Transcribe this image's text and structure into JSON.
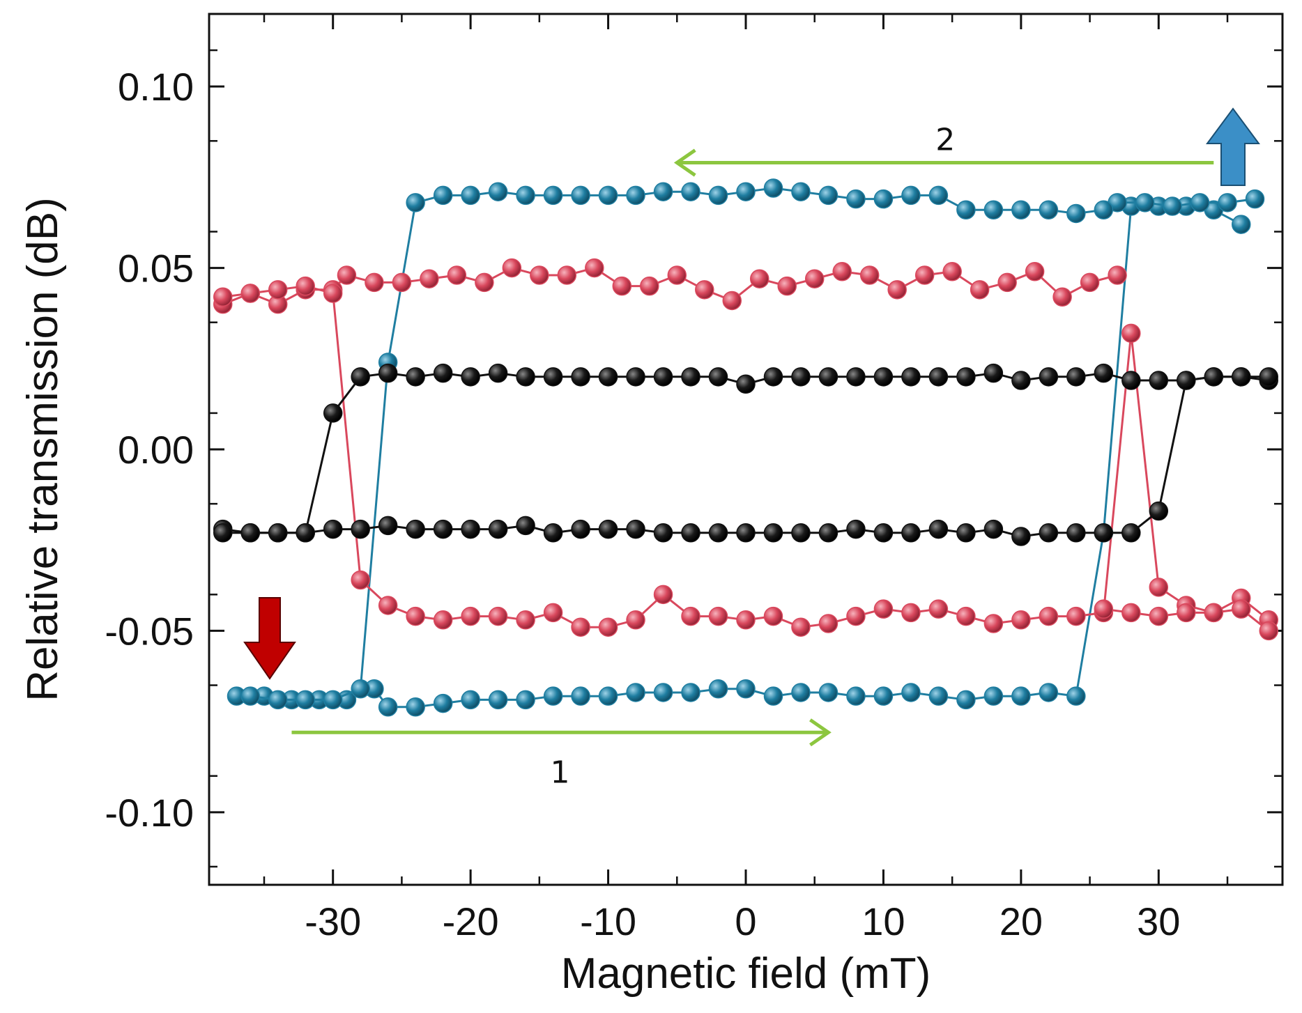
{
  "chart_data": {
    "type": "scatter",
    "title": "",
    "xlabel": "Magnetic field (mT)",
    "ylabel": "Relative transmission (dB)",
    "xlim": [
      -39,
      39
    ],
    "ylim": [
      -0.12,
      0.12
    ],
    "xticks": [
      -30,
      -20,
      -10,
      0,
      10,
      20,
      30
    ],
    "xtick_labels": [
      "-30",
      "-20",
      "-10",
      "0",
      "10",
      "20",
      "30"
    ],
    "yticks": [
      -0.1,
      -0.05,
      0.0,
      0.05,
      0.1
    ],
    "ytick_labels": [
      "-0.10",
      "-0.05",
      "0.00",
      "0.05",
      "0.10"
    ],
    "grid": false,
    "colors": {
      "blue": "#1f7ea1",
      "red": "#d9485d",
      "black": "#111111",
      "green": "#8cc63f",
      "down_arrow": "#c00000",
      "up_arrow": "#3b8fc7"
    },
    "series": [
      {
        "name": "blue-forward",
        "color": "#1f7ea1",
        "x": [
          -37,
          -35,
          -33,
          -31,
          -29,
          -27,
          -26,
          -24,
          -22,
          -20,
          -18,
          -16,
          -14,
          -12,
          -10,
          -8,
          -6,
          -4,
          -2,
          0,
          2,
          4,
          6,
          8,
          10,
          12,
          14,
          16,
          18,
          20,
          22,
          24,
          26,
          28,
          30,
          32,
          34,
          36
        ],
        "y": [
          -0.068,
          -0.068,
          -0.069,
          -0.069,
          -0.069,
          -0.066,
          -0.071,
          -0.071,
          -0.07,
          -0.069,
          -0.069,
          -0.069,
          -0.068,
          -0.068,
          -0.068,
          -0.067,
          -0.067,
          -0.067,
          -0.066,
          -0.066,
          -0.068,
          -0.067,
          -0.067,
          -0.068,
          -0.068,
          -0.067,
          -0.068,
          -0.069,
          -0.068,
          -0.068,
          -0.067,
          -0.068,
          -0.023,
          0.067,
          0.067,
          0.067,
          0.066,
          0.062
        ]
      },
      {
        "name": "blue-reverse",
        "color": "#1f7ea1",
        "x": [
          37,
          35,
          33,
          31,
          29,
          27,
          26,
          24,
          22,
          20,
          18,
          16,
          14,
          12,
          10,
          8,
          6,
          4,
          2,
          0,
          -2,
          -4,
          -6,
          -8,
          -10,
          -12,
          -14,
          -16,
          -18,
          -20,
          -22,
          -24,
          -26,
          -28,
          -30,
          -32,
          -34,
          -36
        ],
        "y": [
          0.069,
          0.068,
          0.068,
          0.067,
          0.068,
          0.068,
          0.066,
          0.065,
          0.066,
          0.066,
          0.066,
          0.066,
          0.07,
          0.07,
          0.069,
          0.069,
          0.07,
          0.071,
          0.072,
          0.071,
          0.07,
          0.071,
          0.071,
          0.07,
          0.07,
          0.07,
          0.07,
          0.07,
          0.071,
          0.07,
          0.07,
          0.068,
          0.024,
          -0.066,
          -0.069,
          -0.069,
          -0.069,
          -0.068
        ]
      },
      {
        "name": "red-upper",
        "color": "#d9485d",
        "x": [
          -38,
          -36,
          -34,
          -32,
          -30,
          -29,
          -27,
          -25,
          -23,
          -21,
          -19,
          -17,
          -15,
          -13,
          -11,
          -9,
          -7,
          -5,
          -3,
          -1,
          1,
          3,
          5,
          7,
          9,
          11,
          13,
          15,
          17,
          19,
          21,
          23,
          25,
          27
        ],
        "y": [
          0.04,
          0.043,
          0.04,
          0.044,
          0.044,
          0.048,
          0.046,
          0.046,
          0.047,
          0.048,
          0.046,
          0.05,
          0.048,
          0.048,
          0.05,
          0.045,
          0.045,
          0.048,
          0.044,
          0.041,
          0.047,
          0.045,
          0.047,
          0.049,
          0.048,
          0.044,
          0.048,
          0.049,
          0.044,
          0.046,
          0.049,
          0.042,
          0.046,
          0.048
        ]
      },
      {
        "name": "red-switch",
        "color": "#d9485d",
        "x": [
          -38,
          -36,
          -34,
          -32,
          -30,
          -28,
          -26,
          -24,
          -22,
          -20,
          -18,
          -16,
          -14,
          -12,
          -10,
          -8,
          -6,
          -4,
          -2,
          0,
          2,
          4,
          6,
          8,
          10,
          12,
          14,
          16,
          18,
          20,
          22,
          24,
          26,
          28,
          30,
          32,
          34,
          36,
          38
        ],
        "y": [
          0.042,
          0.043,
          0.044,
          0.045,
          0.043,
          -0.036,
          -0.043,
          -0.046,
          -0.047,
          -0.046,
          -0.046,
          -0.047,
          -0.045,
          -0.049,
          -0.049,
          -0.047,
          -0.04,
          -0.046,
          -0.046,
          -0.047,
          -0.046,
          -0.049,
          -0.048,
          -0.046,
          -0.044,
          -0.045,
          -0.044,
          -0.046,
          -0.048,
          -0.047,
          -0.046,
          -0.046,
          -0.045,
          0.032,
          -0.038,
          -0.043,
          -0.045,
          -0.041,
          -0.047
        ]
      },
      {
        "name": "red-lower",
        "color": "#d9485d",
        "x": [
          26,
          28,
          30,
          32,
          34,
          36,
          38
        ],
        "y": [
          -0.044,
          -0.045,
          -0.046,
          -0.045,
          -0.045,
          -0.044,
          -0.05
        ]
      },
      {
        "name": "black-lower",
        "color": "#111111",
        "x": [
          -38,
          -36,
          -34,
          -32,
          -30,
          -28,
          -26,
          -24,
          -22,
          -20,
          -18,
          -16,
          -14,
          -12,
          -10,
          -8,
          -6,
          -4,
          -2,
          0,
          2,
          4,
          6,
          8,
          10,
          12,
          14,
          16,
          18,
          20,
          22,
          24,
          26,
          28,
          30,
          32,
          34,
          36,
          38
        ],
        "y": [
          -0.022,
          -0.023,
          -0.023,
          -0.023,
          -0.022,
          -0.022,
          -0.021,
          -0.022,
          -0.022,
          -0.022,
          -0.022,
          -0.021,
          -0.023,
          -0.022,
          -0.022,
          -0.022,
          -0.023,
          -0.023,
          -0.023,
          -0.023,
          -0.023,
          -0.023,
          -0.023,
          -0.022,
          -0.023,
          -0.023,
          -0.022,
          -0.023,
          -0.022,
          -0.024,
          -0.023,
          -0.023,
          -0.023,
          -0.023,
          -0.017,
          0.019,
          0.02,
          0.02,
          0.019
        ]
      },
      {
        "name": "black-upper",
        "color": "#111111",
        "x": [
          38,
          36,
          34,
          32,
          30,
          28,
          26,
          24,
          22,
          20,
          18,
          16,
          14,
          12,
          10,
          8,
          6,
          4,
          2,
          0,
          -2,
          -4,
          -6,
          -8,
          -10,
          -12,
          -14,
          -16,
          -18,
          -20,
          -22,
          -24,
          -26,
          -28,
          -30,
          -32,
          -34,
          -36,
          -38
        ],
        "y": [
          0.02,
          0.02,
          0.02,
          0.019,
          0.019,
          0.019,
          0.021,
          0.02,
          0.02,
          0.019,
          0.021,
          0.02,
          0.02,
          0.02,
          0.02,
          0.02,
          0.02,
          0.02,
          0.02,
          0.018,
          0.02,
          0.02,
          0.02,
          0.02,
          0.02,
          0.02,
          0.02,
          0.02,
          0.021,
          0.02,
          0.021,
          0.02,
          0.021,
          0.02,
          0.01,
          -0.023,
          -0.023,
          -0.023,
          -0.023
        ]
      }
    ],
    "annotations": [
      {
        "text": "1",
        "arrow_from_x": -33,
        "arrow_to_x": 6,
        "y": -0.078,
        "direction": "right"
      },
      {
        "text": "2",
        "arrow_from_x": 34,
        "arrow_to_x": -5,
        "y": 0.079,
        "direction": "left"
      }
    ]
  }
}
